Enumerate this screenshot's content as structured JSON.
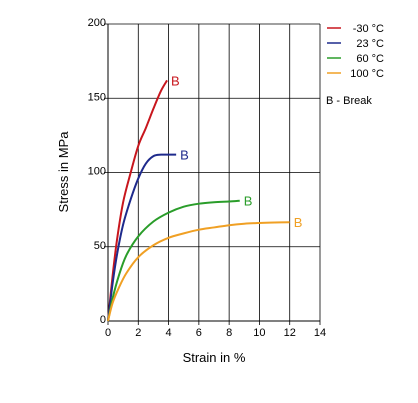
{
  "chart_data": {
    "type": "line",
    "xlabel": "Strain in %",
    "ylabel": "Stress in MPa",
    "xlim": [
      0,
      14
    ],
    "ylim": [
      0,
      200
    ],
    "x_ticks": [
      "0",
      "2",
      "4",
      "6",
      "8",
      "10",
      "12",
      "14"
    ],
    "y_ticks": [
      "0",
      "50",
      "100",
      "150",
      "200"
    ],
    "grid": true,
    "legend_position": "top-right",
    "legend_note": "B - Break",
    "end_marker_text": "B",
    "series": [
      {
        "name": "-30 °C",
        "color": "#c8161d",
        "x": [
          0,
          0.3,
          0.6,
          1.0,
          1.5,
          2.0,
          2.5,
          3.0,
          3.5,
          3.9
        ],
        "y": [
          0,
          30,
          55,
          80,
          100,
          118,
          130,
          143,
          155,
          162
        ]
      },
      {
        "name": "23 °C",
        "color": "#1e2a8c",
        "x": [
          0,
          0.3,
          0.6,
          1.0,
          1.5,
          2.0,
          2.5,
          3.0,
          3.5,
          4.0,
          4.5
        ],
        "y": [
          0,
          25,
          45,
          65,
          82,
          96,
          106,
          111,
          112,
          112,
          112
        ]
      },
      {
        "name": "60 °C",
        "color": "#2a9d2a",
        "x": [
          0,
          0.3,
          0.7,
          1.2,
          2.0,
          3.0,
          4.0,
          5.0,
          6.0,
          7.0,
          8.0,
          8.7
        ],
        "y": [
          0,
          15,
          30,
          44,
          57,
          67,
          73,
          77,
          79,
          80,
          80.5,
          81
        ]
      },
      {
        "name": "100 °C",
        "color": "#f0a024",
        "x": [
          0,
          0.3,
          0.7,
          1.2,
          2.0,
          3.0,
          4.0,
          5.0,
          6.0,
          7.0,
          8.0,
          9.0,
          10.0,
          11.0,
          12.0
        ],
        "y": [
          0,
          12,
          22,
          32,
          43,
          51,
          56,
          59,
          61.5,
          63,
          64.5,
          65.5,
          66,
          66.3,
          66.5
        ]
      }
    ]
  }
}
